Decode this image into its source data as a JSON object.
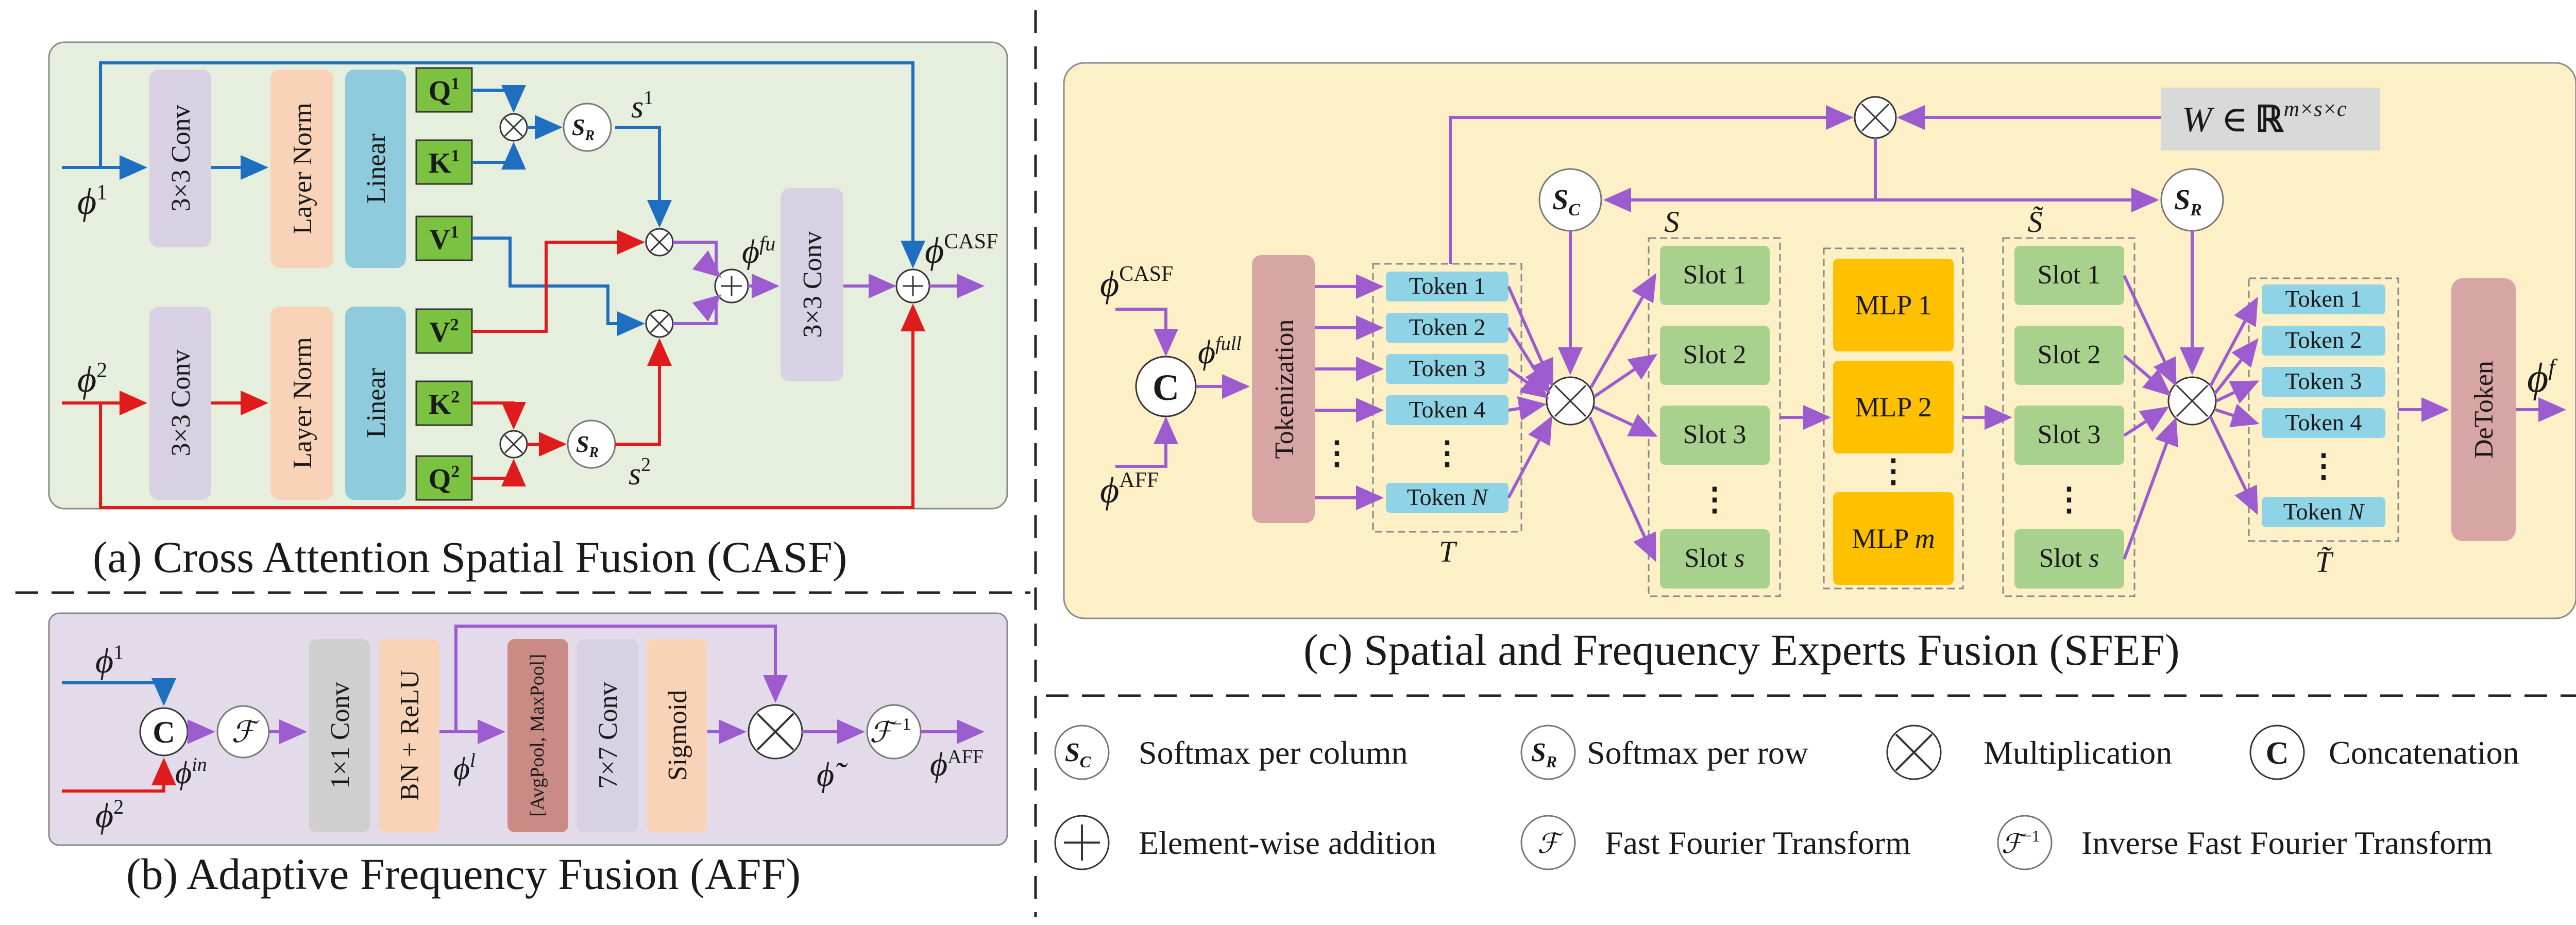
{
  "casf": {
    "caption": "(a) Cross Attention Spatial Fusion (CASF)",
    "in1": "ϕ",
    "in1_sup": "1",
    "in2": "ϕ",
    "in2_sup": "2",
    "conv_top": "3×3 Conv",
    "conv_bot": "3×3 Conv",
    "norm_top": "Layer Norm",
    "norm_bot": "Layer Norm",
    "linear_top": "Linear",
    "linear_bot": "Linear",
    "q1": "Q",
    "q1_sup": "1",
    "k1": "K",
    "k1_sup": "1",
    "v1": "V",
    "v1_sup": "1",
    "v2": "V",
    "v2_sup": "2",
    "k2": "K",
    "k2_sup": "2",
    "q2": "Q",
    "q2_sup": "2",
    "sr_label": "S",
    "sr_sub": "R",
    "s1": "s",
    "s1_sup": "1",
    "s2": "s",
    "s2_sup": "2",
    "phi_fu": "ϕ",
    "phi_fu_sup": "fu",
    "conv_out": "3×3 Conv",
    "out": "ϕ",
    "out_sup": "CASF"
  },
  "aff": {
    "caption": "(b) Adaptive Frequency Fusion (AFF)",
    "in1": "ϕ",
    "in1_sup": "1",
    "in2": "ϕ",
    "in2_sup": "2",
    "concat": "C",
    "phi_in": "ϕ",
    "phi_in_sup": "in",
    "fft": "ℱ",
    "conv1": "1×1 Conv",
    "bn": "BN + ReLU",
    "phi_l": "ϕ",
    "phi_l_sup": "l",
    "pool": "[AvgPool, MaxPool]",
    "conv7": "7×7 Conv",
    "sigmoid": "Sigmoid",
    "phi_tilde": "ϕ̃",
    "ifft": "ℱ",
    "ifft_sup": "−1",
    "out": "ϕ",
    "out_sup": "AFF"
  },
  "sfef": {
    "caption": "(c) Spatial and Frequency Experts Fusion (SFEF)",
    "in_casf": "ϕ",
    "in_casf_sup": "CASF",
    "in_aff": "ϕ",
    "in_aff_sup": "AFF",
    "concat": "C",
    "phi_full": "ϕ",
    "phi_full_sup": "full",
    "tokenization": "Tokenization",
    "tokens": [
      "Token 1",
      "Token 2",
      "Token 3",
      "Token 4"
    ],
    "token_n": "Token N",
    "token_n_prefix": "Token ",
    "token_n_var": "N",
    "t_label": "T",
    "sc_label": "S",
    "sc_sub": "C",
    "sr_label": "S",
    "sr_sub": "R",
    "s_label": "S",
    "s_tilde_label": "S̃",
    "slots": [
      "Slot 1",
      "Slot 2",
      "Slot 3"
    ],
    "slot_s_prefix": "Slot ",
    "slot_s_var": "s",
    "mlps": [
      "MLP 1",
      "MLP 2"
    ],
    "mlp_m_prefix": "MLP ",
    "mlp_m_var": "m",
    "slots_out": [
      "Slot 1",
      "Slot 2",
      "Slot 3"
    ],
    "tokens_out": [
      "Token 1",
      "Token 2",
      "Token 3",
      "Token 4"
    ],
    "t_tilde_label": "T̃",
    "weight_W": "W",
    "weight_in": "∈",
    "weight_R": "ℝ",
    "weight_sup": "m×s×c",
    "detoken": "DeToken",
    "out": "ϕ",
    "out_sup": "f",
    "ellipsis": "⋮"
  },
  "legend": {
    "sc_label": "S",
    "sc_sub": "C",
    "sc_text": "Softmax per column",
    "sr_label": "S",
    "sr_sub": "R",
    "sr_text": "Softmax per row",
    "mult_text": "Multiplication",
    "concat_symbol": "C",
    "concat_text": "Concatenation",
    "add_text": "Element-wise addition",
    "fft_symbol": "ℱ",
    "fft_text": "Fast Fourier Transform",
    "ifft_symbol": "ℱ",
    "ifft_sup": "−1",
    "ifft_text": "Inverse Fast Fourier Transform"
  },
  "colors": {
    "casf_bg": "#e6efdd",
    "aff_bg": "#e4dbea",
    "sfef_bg": "#fdefc6",
    "blue": "#1f6fc0",
    "red": "#e01b1b",
    "purple": "#9c5ccf",
    "conv": "#d8d0e3",
    "norm": "#f9d3b7",
    "linear": "#8ecbdc",
    "qkv": "#7cc241",
    "token": "#8fd3e6",
    "slot": "#a9d18e",
    "mlp": "#ffc000",
    "pink": "#d8a5a5",
    "gray": "#cfcfcf",
    "pool": "#c98b84"
  }
}
